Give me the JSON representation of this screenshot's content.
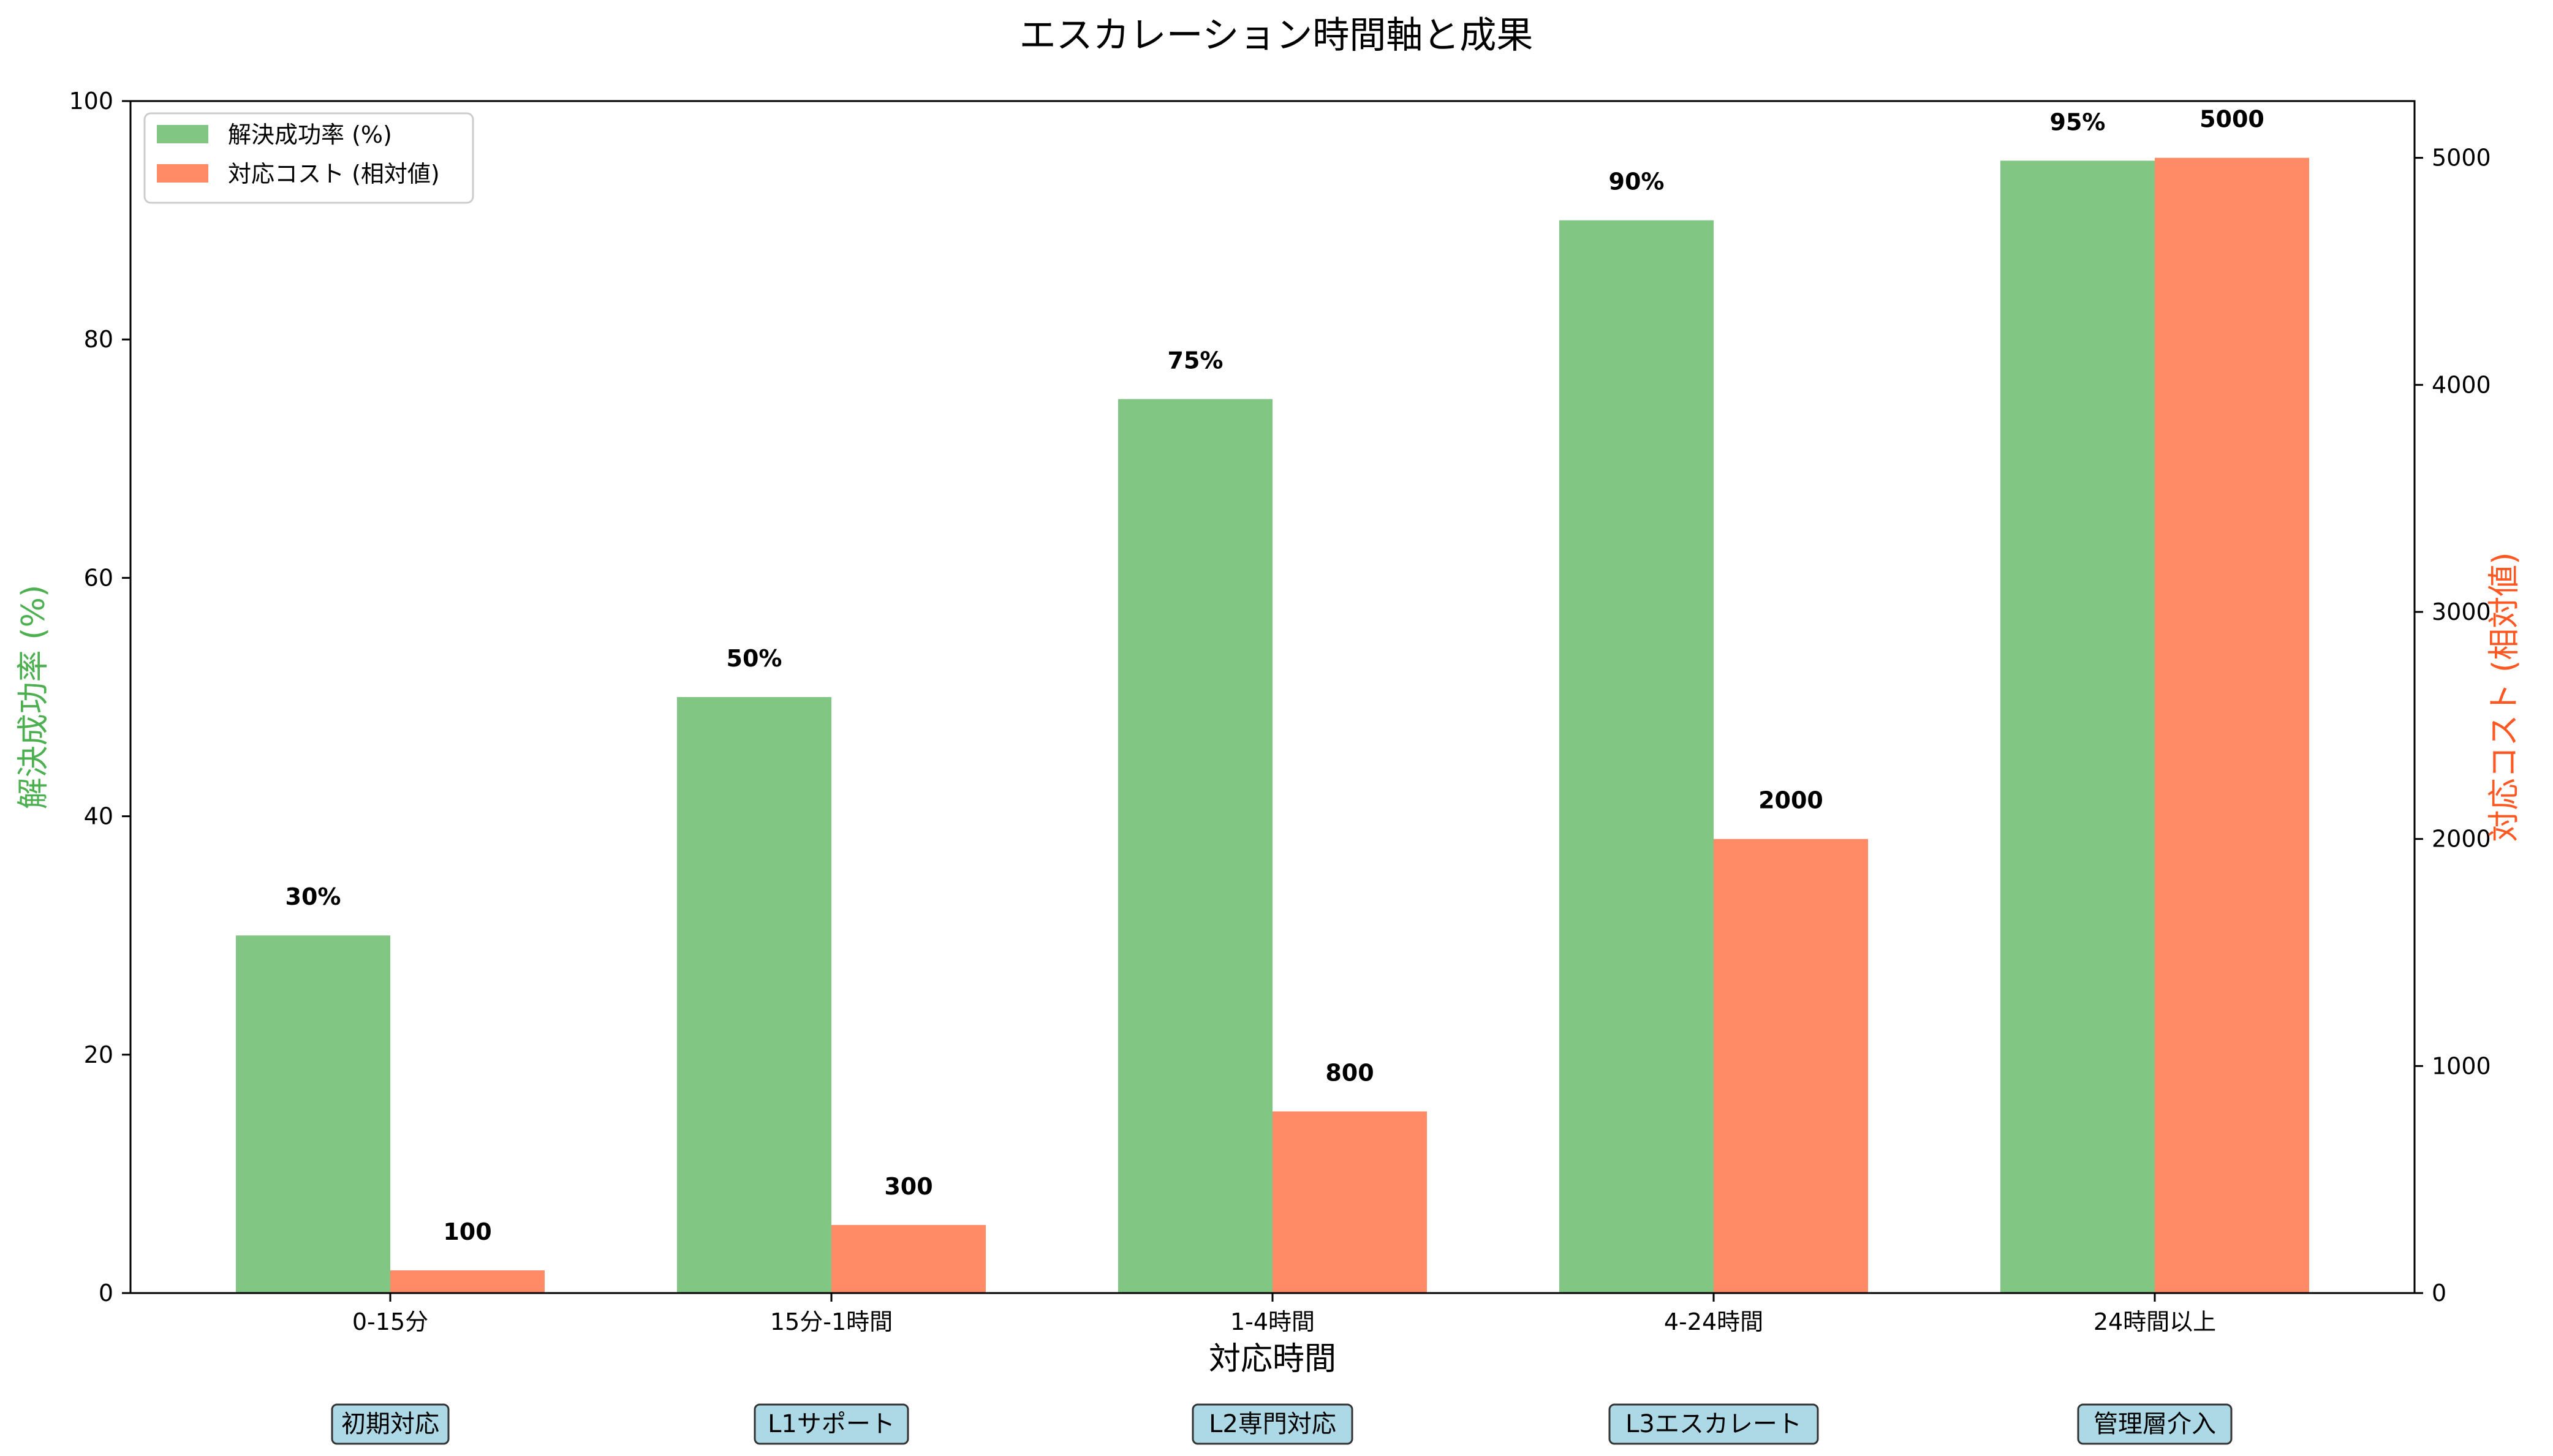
{
  "chart_data": {
    "type": "bar",
    "title": "エスカレーション時間軸と成果",
    "xlabel": "対応時間",
    "ylabel_left": "解決成功率 (%)",
    "ylabel_right": "対応コスト (相対値)",
    "categories": [
      "0-15分",
      "15分-1時間",
      "1-4時間",
      "4-24時間",
      "24時間以上"
    ],
    "stage_labels": [
      "初期対応",
      "L1サポート",
      "L2専門対応",
      "L3エスカレート",
      "管理層介入"
    ],
    "series": [
      {
        "name": "解決成功率 (%)",
        "axis": "left",
        "color": "#82c684",
        "values": [
          30,
          50,
          75,
          90,
          95
        ],
        "labels": [
          "30%",
          "50%",
          "75%",
          "90%",
          "95%"
        ]
      },
      {
        "name": "対応コスト (相対値)",
        "axis": "right",
        "color": "#ff8a65",
        "values": [
          100,
          300,
          800,
          2000,
          5000
        ],
        "labels": [
          "100",
          "300",
          "800",
          "2000",
          "5000"
        ]
      }
    ],
    "ylim_left": [
      0,
      100
    ],
    "yticks_left": [
      "0",
      "20",
      "40",
      "60",
      "80",
      "100"
    ],
    "ylim_right": [
      0,
      5250
    ],
    "yticks_right": [
      "0",
      "1000",
      "2000",
      "3000",
      "4000",
      "5000"
    ],
    "legend_placement": "top-left",
    "grid": false,
    "left_axis_color": "#4caf50",
    "right_axis_color": "#ff5722",
    "stage_box_color": "#add8e6"
  }
}
